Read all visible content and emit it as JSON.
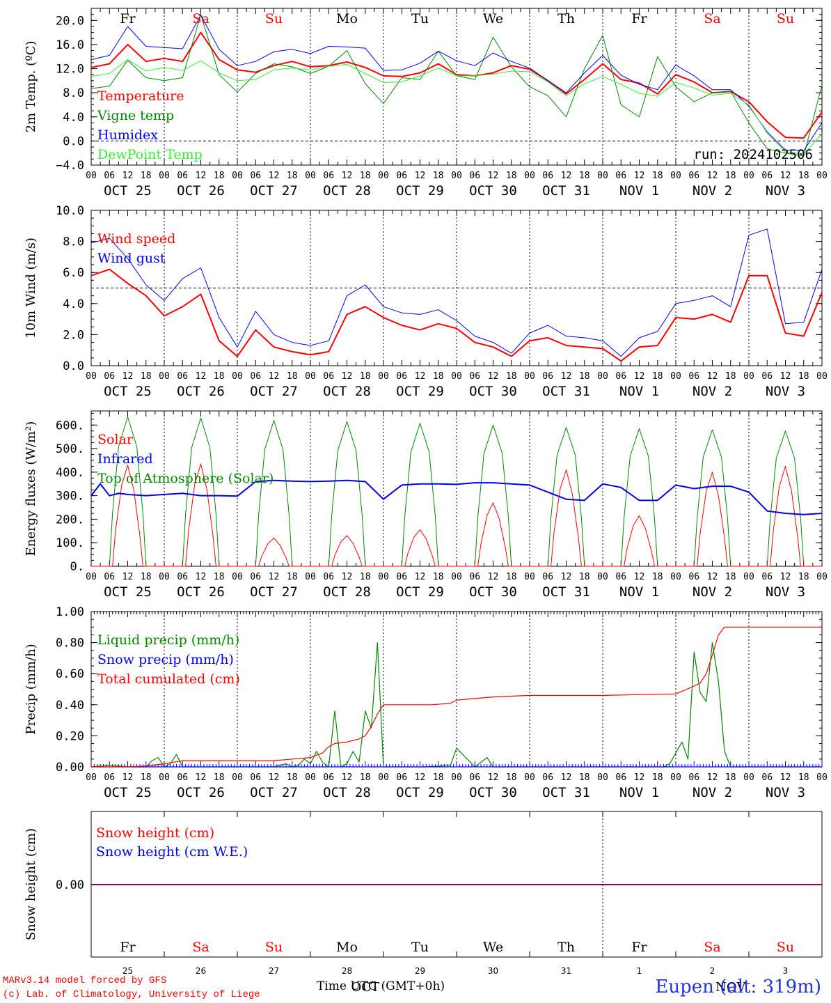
{
  "run_label": "run: 2024102506",
  "footer": {
    "line1": "MARv3.14 model forced by GFS",
    "line2": "(c) Lab. of Climatology, University of Liege",
    "station": "Eupen (alt: 319m)",
    "x_title": "Time UTC (GMT+0h)",
    "month_overlay": "OCT",
    "month_overlay2": "NOV"
  },
  "days": {
    "names": [
      "Fr",
      "Sa",
      "Su",
      "Mo",
      "Tu",
      "We",
      "Th",
      "Fr",
      "Sa",
      "Su"
    ],
    "weekend": [
      false,
      true,
      true,
      false,
      false,
      false,
      false,
      false,
      true,
      true
    ],
    "dates": [
      "OCT 25",
      "OCT 26",
      "OCT 27",
      "OCT 28",
      "OCT 29",
      "OCT 30",
      "OCT 31",
      "NOV  1",
      "NOV  2",
      "NOV  3"
    ],
    "daynums": [
      "25",
      "26",
      "27",
      "28",
      "29",
      "30",
      "31",
      "1",
      "2",
      "3"
    ],
    "hour_ticks": [
      "00",
      "06",
      "12",
      "18"
    ],
    "end_tick": "00"
  },
  "colors": {
    "red": "#ff0000",
    "green": "#008800",
    "blue": "#0000ee",
    "lightgreen": "#33ee33",
    "purple": "#800080",
    "weekend": "#ff0000"
  },
  "chart_data": [
    {
      "type": "line",
      "ylabel": "2m Temp. (ºC)",
      "ylim": [
        -4,
        22
      ],
      "yticks": [
        "20.0",
        "16.0",
        "12.0",
        "8.0",
        "4.0",
        "0.0",
        "−4.0"
      ],
      "ytick_values": [
        20,
        16,
        12,
        8,
        4,
        0,
        -4
      ],
      "ref_line": 0,
      "x_hours": [
        0,
        6,
        12,
        18,
        24,
        30,
        36,
        42,
        48,
        54,
        60,
        66,
        72,
        78,
        84,
        90,
        96,
        102,
        108,
        114,
        120,
        126,
        132,
        138,
        144,
        150,
        156,
        162,
        168,
        174,
        180,
        186,
        192,
        198,
        204,
        210,
        216,
        222,
        228,
        234,
        240
      ],
      "series": [
        {
          "name": "Temperature",
          "color": "red",
          "width": 2,
          "values": [
            12.2,
            12.8,
            16,
            13.2,
            13.7,
            13.2,
            18,
            13.5,
            11.8,
            11.4,
            12.5,
            13.2,
            12.3,
            12.5,
            13.1,
            12.2,
            10.8,
            10.7,
            11.3,
            12.8,
            11,
            10.8,
            11.3,
            12.5,
            11.9,
            10,
            7.8,
            10.2,
            12.8,
            10.2,
            9.6,
            7.8,
            11,
            9.8,
            8,
            8.2,
            6.5,
            3.2,
            0.6,
            0.5,
            4.8
          ]
        },
        {
          "name": "Vigne temp",
          "color": "green",
          "width": 1,
          "values": [
            8.7,
            9.1,
            13.4,
            10.5,
            10,
            10.5,
            21,
            11,
            8.1,
            11.2,
            12.8,
            12.3,
            11.2,
            12.4,
            15,
            9.5,
            6.2,
            10.5,
            10.2,
            14.9,
            10.8,
            10.2,
            17.2,
            12.3,
            9,
            7.5,
            4,
            12,
            17.5,
            6,
            4,
            14,
            9,
            6.5,
            8,
            8.2,
            3,
            -1.3,
            -2,
            -2.5,
            9.3
          ]
        },
        {
          "name": "Humidex",
          "color": "blue",
          "width": 1,
          "values": [
            13.5,
            14.2,
            19,
            15.7,
            15.5,
            15.3,
            20.9,
            15.2,
            12.5,
            13.2,
            14.8,
            15.2,
            14.5,
            15.7,
            15.6,
            15.4,
            11.7,
            11.8,
            12.9,
            14.9,
            13.3,
            12.5,
            14.6,
            13.2,
            12.1,
            10,
            8,
            11.3,
            14.2,
            10.9,
            9.4,
            8.5,
            12.6,
            10.8,
            8.5,
            8.5,
            5.8,
            1.5,
            -1.5,
            -1.6,
            3
          ]
        },
        {
          "name": "DewPoint Temp",
          "color": "lightgreen",
          "width": 1,
          "values": [
            10.7,
            11.2,
            13.5,
            11.6,
            12.2,
            11.7,
            13.3,
            11.3,
            10,
            10.2,
            11.8,
            12.1,
            11.8,
            12.4,
            12.7,
            11.2,
            9.7,
            9.8,
            10.8,
            12.1,
            10.8,
            10.8,
            11.1,
            11.6,
            11.5,
            9.8,
            7.5,
            9.5,
            10.7,
            9.4,
            7.9,
            7.4,
            9.7,
            8.8,
            7.6,
            7.9,
            6,
            1.3,
            -1.8,
            -2.2,
            1.2
          ]
        }
      ],
      "legend": [
        "Temperature",
        "Vigne temp",
        "Humidex",
        "DewPoint Temp"
      ]
    },
    {
      "type": "line",
      "ylabel": "10m Wind (m/s)",
      "ylim": [
        0,
        10
      ],
      "yticks": [
        "10.0",
        "8.0",
        "6.0",
        "4.0",
        "2.0",
        "0.0"
      ],
      "ytick_values": [
        10,
        8,
        6,
        4,
        2,
        0
      ],
      "ref_line": 5,
      "x_hours": [
        0,
        6,
        12,
        18,
        24,
        30,
        36,
        42,
        48,
        54,
        60,
        66,
        72,
        78,
        84,
        90,
        96,
        102,
        108,
        114,
        120,
        126,
        132,
        138,
        144,
        150,
        156,
        162,
        168,
        174,
        180,
        186,
        192,
        198,
        204,
        210,
        216,
        222,
        228,
        234,
        240
      ],
      "series": [
        {
          "name": "Wind speed",
          "color": "red",
          "width": 2,
          "values": [
            5.8,
            6.2,
            5.3,
            4.5,
            3.2,
            3.8,
            4.6,
            1.6,
            0.6,
            2.3,
            1.2,
            0.9,
            0.7,
            0.9,
            3.3,
            3.8,
            3.1,
            2.6,
            2.3,
            2.7,
            2.4,
            1.5,
            1.2,
            0.6,
            1.6,
            1.8,
            1.3,
            1.2,
            1.1,
            0.3,
            1.2,
            1.3,
            3.1,
            3,
            3.3,
            2.8,
            5.8,
            5.8,
            2.1,
            1.9,
            4.7
          ]
        },
        {
          "name": "Wind gust",
          "color": "blue",
          "width": 1,
          "values": [
            7.9,
            8.2,
            6.9,
            5.2,
            4.2,
            5.6,
            6.3,
            3.1,
            1.2,
            3.5,
            2,
            1.5,
            1.3,
            1.6,
            4.5,
            5.2,
            3.8,
            3.4,
            3.3,
            3.6,
            2.9,
            1.9,
            1.5,
            0.8,
            2.1,
            2.6,
            1.9,
            1.8,
            1.6,
            0.6,
            1.8,
            2.2,
            4,
            4.2,
            4.5,
            3.8,
            8.4,
            8.8,
            2.7,
            2.8,
            6.2
          ]
        }
      ],
      "legend": [
        "Wind speed",
        "Wind gust"
      ]
    },
    {
      "type": "line",
      "ylabel": "Energy fluxes (W/m²)",
      "ylim": [
        0,
        660
      ],
      "yticks": [
        "600.",
        "500.",
        "400.",
        "300.",
        "200.",
        "100.",
        "0."
      ],
      "ytick_values": [
        600,
        500,
        400,
        300,
        200,
        100,
        0
      ],
      "series": [
        {
          "name": "Solar",
          "color": "red",
          "width": 1
        },
        {
          "name": "Infrared",
          "color": "blue",
          "width": 2,
          "x_hours": [
            0,
            3,
            6,
            9,
            12,
            18,
            24,
            30,
            36,
            42,
            48,
            54,
            60,
            66,
            72,
            78,
            84,
            90,
            96,
            102,
            108,
            114,
            120,
            126,
            132,
            138,
            144,
            150,
            156,
            162,
            168,
            174,
            180,
            186,
            192,
            198,
            204,
            210,
            216,
            222,
            228,
            234,
            240
          ],
          "values": [
            300,
            350,
            300,
            310,
            305,
            300,
            305,
            310,
            300,
            300,
            298,
            360,
            365,
            362,
            360,
            362,
            365,
            360,
            285,
            345,
            350,
            350,
            348,
            355,
            355,
            350,
            345,
            315,
            285,
            280,
            350,
            335,
            280,
            280,
            345,
            330,
            340,
            340,
            315,
            235,
            225,
            220,
            225
          ]
        },
        {
          "name": "Top of Atmosphere (Solar)",
          "color": "green",
          "width": 1,
          "peaks": [
            635,
            630,
            620,
            615,
            608,
            600,
            590,
            585,
            580,
            575
          ]
        }
      ],
      "solar_peaks": [
        430,
        435,
        120,
        130,
        155,
        270,
        410,
        215,
        400,
        425
      ],
      "legend": [
        "Solar",
        "Infrared",
        "Top of Atmosphere (Solar)"
      ]
    },
    {
      "type": "line",
      "ylabel": "Precip (mm/h)",
      "ylim": [
        0,
        1
      ],
      "yticks": [
        "1.00",
        "0.80",
        "0.60",
        "0.40",
        "0.20",
        "0.00"
      ],
      "ytick_values": [
        1,
        0.8,
        0.6,
        0.4,
        0.2,
        0
      ],
      "series": [
        {
          "name": "Liquid precip (mm/h)",
          "color": "green",
          "width": 1,
          "x_hours": [
            0,
            6,
            12,
            18,
            20,
            22,
            24,
            26,
            28,
            30,
            48,
            60,
            64,
            66,
            68,
            70,
            72,
            74,
            76,
            78,
            80,
            82,
            84,
            86,
            88,
            90,
            92,
            94,
            96,
            110,
            118,
            120,
            124,
            126,
            130,
            132,
            140,
            160,
            188,
            190,
            194,
            196,
            198,
            200,
            202,
            204,
            206,
            208,
            210,
            216,
            228,
            240
          ],
          "values": [
            0,
            0.01,
            0,
            0,
            0.04,
            0.06,
            0,
            0.02,
            0.08,
            0,
            0,
            0,
            0.02,
            0,
            0.01,
            0.05,
            0.02,
            0.1,
            0.03,
            0,
            0.36,
            0,
            0.02,
            0.1,
            0.03,
            0.36,
            0.25,
            0.8,
            0,
            0,
            0.01,
            0.12,
            0.04,
            0,
            0.06,
            0,
            0,
            0,
            0,
            0.02,
            0.16,
            0.05,
            0.74,
            0.48,
            0.42,
            0.8,
            0.55,
            0.1,
            0,
            0,
            0,
            0
          ]
        },
        {
          "name": "Snow precip (mm/h)",
          "color": "blue",
          "width": 1,
          "x_hours": [
            0,
            240
          ],
          "values": [
            0,
            0
          ]
        },
        {
          "name": "Total cumulated (cm)",
          "color": "red",
          "width": 1,
          "x_hours": [
            0,
            12,
            18,
            24,
            30,
            36,
            60,
            66,
            72,
            76,
            78,
            80,
            84,
            88,
            90,
            92,
            94,
            96,
            112,
            118,
            120,
            126,
            132,
            144,
            168,
            192,
            198,
            200,
            202,
            204,
            206,
            208,
            210,
            216,
            228,
            240
          ],
          "values": [
            0,
            0,
            0.005,
            0.02,
            0.04,
            0.04,
            0.04,
            0.05,
            0.06,
            0.09,
            0.13,
            0.15,
            0.16,
            0.18,
            0.2,
            0.26,
            0.34,
            0.4,
            0.4,
            0.41,
            0.43,
            0.44,
            0.45,
            0.46,
            0.46,
            0.47,
            0.52,
            0.54,
            0.6,
            0.72,
            0.85,
            0.9,
            0.9,
            0.9,
            0.9,
            0.9
          ]
        }
      ],
      "legend": [
        "Liquid precip (mm/h)",
        "Snow precip (mm/h)",
        "Total cumulated (cm)"
      ]
    },
    {
      "type": "line",
      "ylabel": "Snow height (cm)",
      "ytick": "0.00",
      "series": [
        {
          "name": "Snow height (cm)",
          "color": "red",
          "values": [
            0,
            0
          ]
        },
        {
          "name": "Snow height (cm W.E.)",
          "color": "blue",
          "values": [
            0,
            0
          ]
        }
      ],
      "legend": [
        "Snow height (cm)",
        "Snow height (cm W.E.)"
      ]
    }
  ]
}
